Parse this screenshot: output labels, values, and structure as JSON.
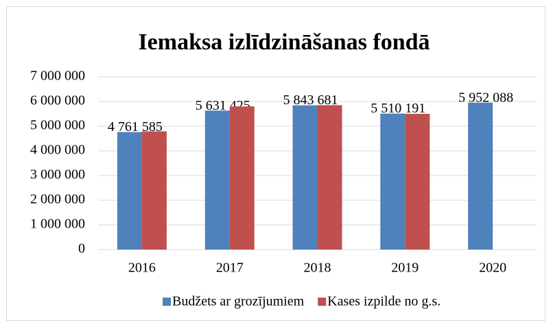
{
  "chart_data": {
    "type": "bar",
    "title": "Iemaksa izlīdzināšanas fondā",
    "categories": [
      "2016",
      "2017",
      "2018",
      "2019",
      "2020"
    ],
    "series": [
      {
        "name": "Budžets ar grozījumiem",
        "color": "#4f81bd",
        "values": [
          4761585,
          5631425,
          5843681,
          5510191,
          5952088
        ],
        "value_labels": [
          "4 761 585",
          "5 631 425",
          "5 843 681",
          "5 510 191",
          "5 952 088"
        ]
      },
      {
        "name": "Kases izpilde no g.s.",
        "color": "#c0504d",
        "values": [
          4790000,
          5800000,
          5850000,
          5500000,
          null
        ]
      }
    ],
    "ylim": [
      0,
      7000000
    ],
    "yticks": [
      0,
      {
        "value": 1000000,
        "label": "1 000 000"
      },
      {
        "value": 2000000,
        "label": "2 000 000"
      },
      {
        "value": 3000000,
        "label": "3 000 000"
      },
      {
        "value": 4000000,
        "label": "4 000 000"
      },
      {
        "value": 5000000,
        "label": "5 000 000"
      },
      {
        "value": 6000000,
        "label": "6 000 000"
      },
      {
        "value": 7000000,
        "label": "7 000 000"
      }
    ],
    "grid": true,
    "legend": "bottom"
  }
}
